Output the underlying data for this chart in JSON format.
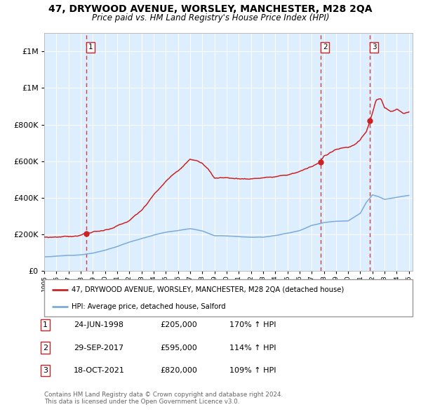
{
  "title": "47, DRYWOOD AVENUE, WORSLEY, MANCHESTER, M28 2QA",
  "subtitle": "Price paid vs. HM Land Registry's House Price Index (HPI)",
  "legend_line1": "47, DRYWOOD AVENUE, WORSLEY, MANCHESTER, M28 2QA (detached house)",
  "legend_line2": "HPI: Average price, detached house, Salford",
  "sale1_date": "24-JUN-1998",
  "sale1_price": 205000,
  "sale1_hpi": "170% ↑ HPI",
  "sale2_date": "29-SEP-2017",
  "sale2_price": 595000,
  "sale2_hpi": "114% ↑ HPI",
  "sale3_date": "18-OCT-2021",
  "sale3_price": 820000,
  "sale3_hpi": "109% ↑ HPI",
  "copyright": "Contains HM Land Registry data © Crown copyright and database right 2024.\nThis data is licensed under the Open Government Licence v3.0.",
  "red_color": "#cc2222",
  "blue_color": "#7aabdb",
  "bg_color": "#ddeeff",
  "grid_color": "#c8d8e8",
  "ylim": [
    0,
    1300000
  ],
  "yticks": [
    0,
    200000,
    400000,
    600000,
    800000,
    1000000,
    1200000
  ],
  "sale1_x": 1998.48,
  "sale2_x": 2017.75,
  "sale3_x": 2021.79
}
